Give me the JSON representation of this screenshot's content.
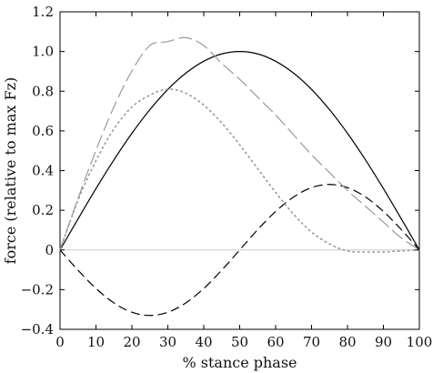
{
  "chart_data": {
    "type": "line",
    "xlabel": "% stance phase",
    "ylabel": "force (relative to max Fz)",
    "xlim": [
      0,
      100
    ],
    "ylim": [
      -0.4,
      1.2
    ],
    "xticks": [
      0,
      10,
      20,
      30,
      40,
      50,
      60,
      70,
      80,
      90,
      100
    ],
    "yticks": [
      -0.4,
      -0.2,
      0,
      0.2,
      0.4,
      0.6,
      0.8,
      1.0,
      1.2
    ],
    "ytick_labels": [
      "−0.4",
      "−0.2",
      "0",
      "0.2",
      "0.4",
      "0.6",
      "0.8",
      "1.0",
      "1.2"
    ],
    "grid": false,
    "zero_line": true,
    "series": [
      {
        "style": "solid",
        "color": "#000000",
        "x": [
          0,
          5,
          10,
          15,
          20,
          25,
          30,
          35,
          40,
          45,
          50,
          55,
          60,
          65,
          70,
          75,
          80,
          85,
          90,
          95,
          100
        ],
        "y": [
          0,
          0.156,
          0.309,
          0.454,
          0.588,
          0.707,
          0.809,
          0.891,
          0.951,
          0.988,
          1.0,
          0.988,
          0.951,
          0.891,
          0.809,
          0.707,
          0.588,
          0.454,
          0.309,
          0.156,
          0
        ]
      },
      {
        "style": "dashed",
        "color": "#000000",
        "x": [
          0,
          5,
          10,
          15,
          20,
          25,
          30,
          35,
          40,
          45,
          50,
          55,
          60,
          65,
          70,
          75,
          80,
          85,
          90,
          95,
          100
        ],
        "y": [
          0,
          -0.102,
          -0.194,
          -0.267,
          -0.314,
          -0.33,
          -0.314,
          -0.267,
          -0.194,
          -0.102,
          0,
          0.102,
          0.194,
          0.267,
          0.314,
          0.33,
          0.314,
          0.267,
          0.194,
          0.102,
          0
        ]
      },
      {
        "style": "long-dash",
        "color": "#999999",
        "x": [
          0,
          5,
          10,
          15,
          20,
          25,
          30,
          35,
          40,
          45,
          50,
          55,
          60,
          65,
          70,
          75,
          80,
          85,
          90,
          95,
          100
        ],
        "y": [
          0,
          0.26,
          0.502,
          0.721,
          0.902,
          1.03,
          1.05,
          1.07,
          1.03,
          0.94,
          0.86,
          0.77,
          0.68,
          0.58,
          0.48,
          0.39,
          0.3,
          0.22,
          0.14,
          0.06,
          0
        ]
      },
      {
        "style": "dotted",
        "color": "#999999",
        "x": [
          0,
          5,
          10,
          15,
          20,
          25,
          30,
          35,
          40,
          45,
          50,
          55,
          60,
          65,
          70,
          75,
          80,
          85,
          90,
          95,
          100
        ],
        "y": [
          0,
          0.25,
          0.45,
          0.61,
          0.72,
          0.78,
          0.81,
          0.79,
          0.73,
          0.64,
          0.53,
          0.41,
          0.29,
          0.18,
          0.09,
          0.03,
          -0.005,
          -0.01,
          -0.01,
          -0.005,
          0
        ]
      }
    ]
  }
}
